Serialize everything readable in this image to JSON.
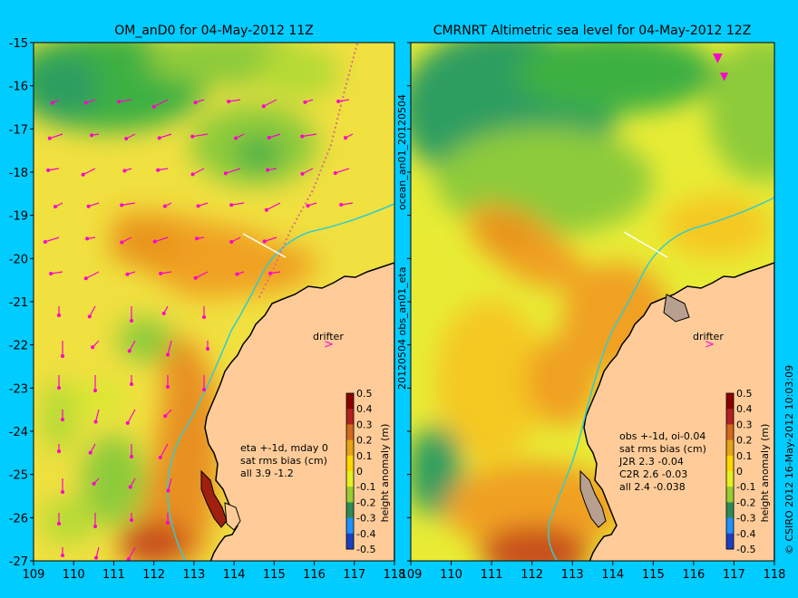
{
  "panel_left": {
    "title": "OM_anD0 for 04-May-2012 11Z",
    "drifter_label": "drifter",
    "stats": [
      "eta +-1d, mday 0",
      "sat rms bias (cm)",
      "all 3.9 -1.2"
    ]
  },
  "panel_right": {
    "title": "CMRNRT Altimetric sea level  for 04-May-2012 12Z",
    "drifter_label": "drifter",
    "stats": [
      "obs +-1d, oi-0.04",
      "sat rms bias (cm)",
      "J2R   2.3 -0.04",
      "C2R   2.6 -0.03",
      "all 2.4 -0.038"
    ]
  },
  "side_label_mid": "20120504 obs_an01_eta",
  "side_label_top": "ocean_an01_20120504",
  "side_label_right": "© CSIRO 2012  16-May-2012 10:03:09",
  "colorbar": {
    "label": "height anomaly (m)",
    "ticks": [
      "0.5",
      "0.4",
      "0.3",
      "0.2",
      "0.1",
      "0",
      "-0.1",
      "-0.2",
      "-0.3",
      "-0.4",
      "-0.5"
    ],
    "colors": [
      "#8B0000",
      "#B22222",
      "#D2691E",
      "#E8A317",
      "#FFD700",
      "#E6F020",
      "#9ACD32",
      "#2E8B57",
      "#1E90FF",
      "#1C3FBF",
      "#0A0A80"
    ]
  },
  "axes": {
    "x_ticks": [
      "109",
      "110",
      "111",
      "112",
      "113",
      "114",
      "115",
      "116",
      "117",
      "118"
    ],
    "y_ticks": [
      "-15",
      "-16",
      "-17",
      "-18",
      "-19",
      "-20",
      "-21",
      "-22",
      "-23",
      "-24",
      "-25",
      "-26",
      "-27"
    ]
  },
  "colors": {
    "land": "#FFCC99",
    "background": "#00CCFF",
    "vectors": "#FF00CC",
    "track": "#33CCCC"
  }
}
